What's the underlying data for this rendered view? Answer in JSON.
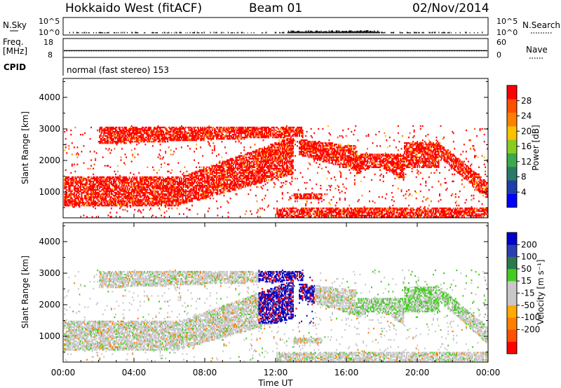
{
  "header": {
    "station": "Hokkaido West (fitACF)",
    "beam": "Beam 01",
    "date": "02/Nov/2014"
  },
  "side_labels": {
    "nsky": "N.Sky",
    "freq": "Freq.",
    "freq_unit": "[MHz]",
    "cpid": "CPID",
    "nsearch": "N.Search",
    "nave": "Nave"
  },
  "cpid_text": "normal (fast stereo) 153",
  "colors": {
    "power_scale": [
      "#0000ff",
      "#1e3fa8",
      "#2a7a6a",
      "#3aaa4a",
      "#88cc22",
      "#ffc000",
      "#ff8000",
      "#ff5000",
      "#ff0000"
    ],
    "velocity_scale": [
      "#ff0000",
      "#ff5000",
      "#ff8000",
      "#ffaa00",
      "#c8c8c8",
      "#c8c8c8",
      "#44cc22",
      "#2a7a4a",
      "#2a40b0",
      "#0000cc"
    ]
  },
  "chart_data": [
    {
      "type": "line",
      "panel": "noise",
      "ylabel": "N.Sky",
      "ytick_labels": [
        "10^5",
        "10^0"
      ],
      "right_label": "N.Search",
      "right_tick_labels": [
        "10^5",
        "10^0"
      ],
      "xlim": [
        "00:00",
        "24:00"
      ]
    },
    {
      "type": "line",
      "panel": "frequency",
      "ylabel": "Freq. [MHz]",
      "ylim": [
        8,
        18
      ],
      "yticks": [
        8,
        18
      ],
      "right_label": "Nave",
      "right_ylim": [
        0,
        60
      ],
      "right_yticks": [
        0,
        60
      ],
      "frequency_mhz": 11.6,
      "nave": 21
    },
    {
      "type": "table",
      "panel": "cpid",
      "label": "CPID",
      "value": "normal (fast stereo) 153"
    },
    {
      "type": "heatmap",
      "panel": "power",
      "ylabel": "Slant Range [km]",
      "ylim": [
        180,
        4600
      ],
      "yticks": [
        1000,
        2000,
        3000,
        4000
      ],
      "colorbar_label": "Power [dB]",
      "colorbar_ticks": [
        4,
        8,
        12,
        16,
        20,
        24,
        28
      ],
      "colorbar_range": [
        0,
        32
      ],
      "xlim": [
        0,
        24
      ],
      "xtick_labels": [
        "00:00",
        "04:00",
        "08:00",
        "12:00",
        "16:00",
        "20:00",
        "00:00"
      ]
    },
    {
      "type": "heatmap",
      "panel": "velocity",
      "ylabel": "Slant Range [km]",
      "ylim": [
        180,
        4600
      ],
      "yticks": [
        1000,
        2000,
        3000,
        4000
      ],
      "colorbar_label": "Velocity [m s⁻¹]",
      "colorbar_ticks": [
        200,
        100,
        50,
        15,
        -15,
        -50,
        -100,
        -200
      ],
      "xlabel": "Time UT",
      "xlim": [
        0,
        24
      ],
      "xtick_labels": [
        "00:00",
        "04:00",
        "08:00",
        "12:00",
        "16:00",
        "20:00",
        "00:00"
      ]
    }
  ]
}
